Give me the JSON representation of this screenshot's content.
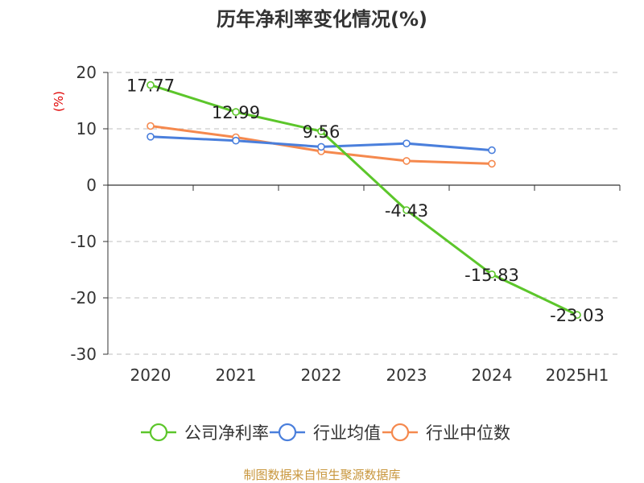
{
  "chart_data": {
    "type": "line",
    "title": "历年净利率变化情况(%)",
    "ylabel": "(%)",
    "categories": [
      "2020",
      "2021",
      "2022",
      "2023",
      "2024",
      "2025H1"
    ],
    "ylim": [
      -30,
      20
    ],
    "yticks": [
      20,
      10,
      0,
      -10,
      -20,
      -30
    ],
    "grid": true,
    "legend_position": "bottom",
    "series": [
      {
        "name": "公司净利率",
        "color": "#5cc62b",
        "values": [
          17.77,
          12.99,
          9.56,
          -4.43,
          -15.83,
          -23.03
        ],
        "labels": [
          "17.77",
          "12.99",
          "9.56",
          "-4.43",
          "-15.83",
          "-23.03"
        ]
      },
      {
        "name": "行业均值",
        "color": "#4a7fdc",
        "values": [
          8.6,
          7.9,
          6.8,
          7.4,
          6.2,
          null
        ]
      },
      {
        "name": "行业中位数",
        "color": "#f5894e",
        "values": [
          10.5,
          8.5,
          6.0,
          4.3,
          3.8,
          null
        ]
      }
    ]
  },
  "source": "制图数据来自恒生聚源数据库"
}
